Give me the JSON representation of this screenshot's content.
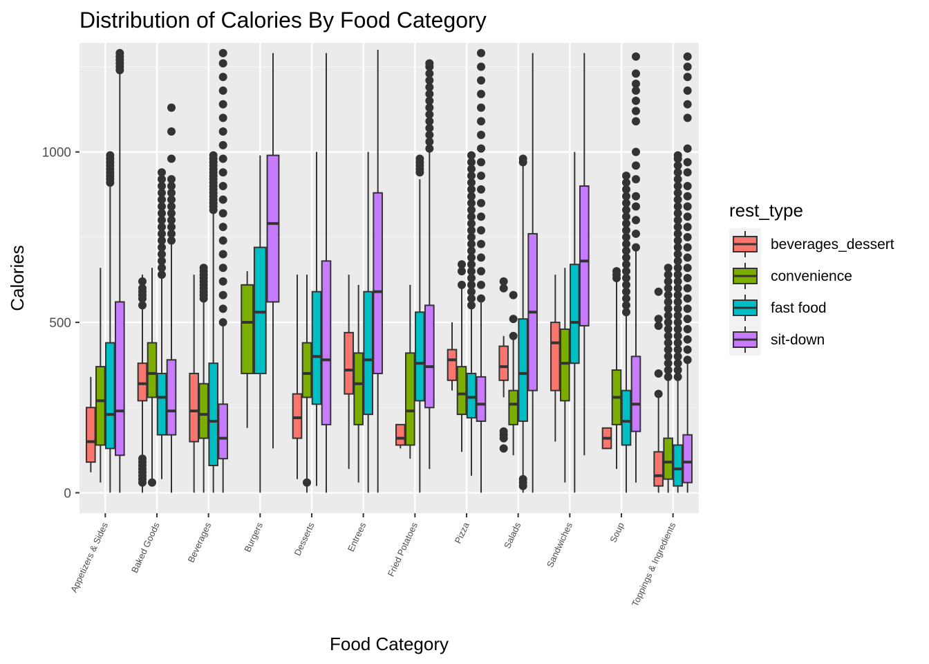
{
  "chart_data": {
    "type": "boxplot",
    "title": "Distribution of Calories By Food Category",
    "xlabel": "Food Category",
    "ylabel": "Calories",
    "ylim": [
      -60,
      1320
    ],
    "yticks": [
      0,
      500,
      1000
    ],
    "grid": true,
    "legend": {
      "title": "rest_type",
      "placement": "right"
    },
    "categories": [
      "Appetizers & Sides",
      "Baked Goods",
      "Beverages",
      "Burgers",
      "Desserts",
      "Entrees",
      "Fried Potatoes",
      "Pizza",
      "Salads",
      "Sandwiches",
      "Soup",
      "Toppings & Ingredients"
    ],
    "series": [
      {
        "name": "beverages_dessert",
        "color": "#F8766D",
        "boxes": [
          {
            "low": 60,
            "q1": 90,
            "median": 150,
            "q3": 250,
            "high": 340,
            "outliers": []
          },
          {
            "low": 0,
            "q1": 270,
            "median": 320,
            "q3": 380,
            "high": 640,
            "outliers": [
              30,
              40,
              50,
              60,
              70,
              80,
              90,
              100,
              550,
              570,
              580,
              590,
              600,
              620
            ]
          },
          {
            "low": 0,
            "q1": 150,
            "median": 240,
            "q3": 350,
            "high": 640,
            "outliers": []
          },
          null,
          {
            "low": 40,
            "q1": 160,
            "median": 220,
            "q3": 290,
            "high": 640,
            "outliers": []
          },
          {
            "low": 70,
            "q1": 290,
            "median": 360,
            "q3": 470,
            "high": 640,
            "outliers": []
          },
          {
            "low": 130,
            "q1": 140,
            "median": 160,
            "q3": 200,
            "high": 200,
            "outliers": []
          },
          {
            "low": 300,
            "q1": 330,
            "median": 390,
            "q3": 420,
            "high": 500,
            "outliers": []
          },
          {
            "low": 280,
            "q1": 330,
            "median": 370,
            "q3": 430,
            "high": 460,
            "outliers": [
              130,
              160,
              170,
              180,
              600,
              620
            ]
          },
          {
            "low": 150,
            "q1": 300,
            "median": 440,
            "q3": 500,
            "high": 640,
            "outliers": []
          },
          {
            "low": 130,
            "q1": 130,
            "median": 160,
            "q3": 190,
            "high": 190,
            "outliers": []
          },
          {
            "low": 0,
            "q1": 20,
            "median": 50,
            "q3": 120,
            "high": 280,
            "outliers": [
              290,
              350,
              490,
              510,
              590
            ]
          }
        ]
      },
      {
        "name": "convenience",
        "color": "#7CAE00",
        "boxes": [
          {
            "low": 30,
            "q1": 140,
            "median": 270,
            "q3": 370,
            "high": 660,
            "outliers": []
          },
          {
            "low": 30,
            "q1": 280,
            "median": 350,
            "q3": 440,
            "high": 660,
            "outliers": [
              30
            ]
          },
          {
            "low": 0,
            "q1": 160,
            "median": 230,
            "q3": 320,
            "high": 560,
            "outliers": [
              570,
              580,
              590,
              600,
              610,
              620,
              630,
              640,
              650,
              660
            ]
          },
          {
            "low": 190,
            "q1": 350,
            "median": 500,
            "q3": 610,
            "high": 650,
            "outliers": []
          },
          {
            "low": 0,
            "q1": 280,
            "median": 350,
            "q3": 440,
            "high": 640,
            "outliers": [
              30
            ]
          },
          {
            "low": 30,
            "q1": 200,
            "median": 320,
            "q3": 410,
            "high": 610,
            "outliers": []
          },
          {
            "low": 100,
            "q1": 140,
            "median": 240,
            "q3": 410,
            "high": 610,
            "outliers": []
          },
          {
            "low": 120,
            "q1": 230,
            "median": 290,
            "q3": 370,
            "high": 600,
            "outliers": [
              610,
              650,
              670
            ]
          },
          {
            "low": 110,
            "q1": 200,
            "median": 260,
            "q3": 300,
            "high": 450,
            "outliers": [
              460,
              510,
              580
            ]
          },
          {
            "low": 30,
            "q1": 270,
            "median": 380,
            "q3": 480,
            "high": 660,
            "outliers": []
          },
          {
            "low": 70,
            "q1": 200,
            "median": 280,
            "q3": 360,
            "high": 620,
            "outliers": [
              630,
              640,
              650
            ]
          },
          {
            "low": 0,
            "q1": 40,
            "median": 90,
            "q3": 160,
            "high": 330,
            "outliers": [
              340,
              360,
              380,
              400,
              420,
              440,
              460,
              480,
              500,
              520,
              540,
              560,
              580,
              600,
              620,
              640,
              660
            ]
          }
        ]
      },
      {
        "name": "fast food",
        "color": "#00BFC4",
        "boxes": [
          {
            "low": 0,
            "q1": 130,
            "median": 230,
            "q3": 440,
            "high": 900,
            "outliers": [
              910,
              920,
              930,
              940,
              950,
              960,
              970,
              980,
              990
            ]
          },
          {
            "low": 40,
            "q1": 170,
            "median": 280,
            "q3": 350,
            "high": 630,
            "outliers": [
              640,
              660,
              680,
              700,
              720,
              740,
              760,
              780,
              800,
              820,
              840,
              860,
              880,
              900,
              920,
              940
            ]
          },
          {
            "low": 0,
            "q1": 80,
            "median": 210,
            "q3": 380,
            "high": 820,
            "outliers": [
              830,
              840,
              850,
              860,
              870,
              880,
              890,
              900,
              910,
              920,
              930,
              940,
              950,
              960,
              970,
              980,
              990
            ]
          },
          {
            "low": 0,
            "q1": 350,
            "median": 530,
            "q3": 720,
            "high": 990,
            "outliers": []
          },
          {
            "low": 20,
            "q1": 260,
            "median": 400,
            "q3": 590,
            "high": 1000,
            "outliers": []
          },
          {
            "low": 0,
            "q1": 230,
            "median": 390,
            "q3": 590,
            "high": 1000,
            "outliers": []
          },
          {
            "low": 0,
            "q1": 270,
            "median": 380,
            "q3": 530,
            "high": 920,
            "outliers": [
              940,
              950,
              960,
              970,
              980
            ]
          },
          {
            "low": 50,
            "q1": 220,
            "median": 280,
            "q3": 350,
            "high": 540,
            "outliers": [
              550,
              570,
              590,
              610,
              630,
              650,
              670,
              690,
              710,
              730,
              750,
              770,
              790,
              810,
              830,
              850,
              870,
              890,
              910,
              930,
              950,
              970,
              990
            ]
          },
          {
            "low": 0,
            "q1": 210,
            "median": 350,
            "q3": 510,
            "high": 970,
            "outliers": [
              20,
              30,
              40,
              970,
              980
            ]
          },
          {
            "low": 0,
            "q1": 380,
            "median": 500,
            "q3": 670,
            "high": 1000,
            "outliers": []
          },
          {
            "low": 0,
            "q1": 140,
            "median": 210,
            "q3": 300,
            "high": 520,
            "outliers": [
              530,
              550,
              570,
              590,
              610,
              630,
              650,
              670,
              690,
              710,
              730,
              750,
              770,
              790,
              810,
              830,
              850,
              870,
              890,
              910,
              930
            ]
          },
          {
            "low": 0,
            "q1": 20,
            "median": 70,
            "q3": 140,
            "high": 330,
            "outliers": [
              340,
              360,
              380,
              400,
              420,
              440,
              460,
              480,
              500,
              520,
              540,
              560,
              580,
              600,
              620,
              640,
              660,
              680,
              700,
              720,
              740,
              760,
              780,
              800,
              820,
              840,
              860,
              880,
              900,
              920,
              940,
              960,
              980,
              990
            ]
          }
        ]
      },
      {
        "name": "sit-down",
        "color": "#C77CFF",
        "boxes": [
          {
            "low": 0,
            "q1": 110,
            "median": 240,
            "q3": 560,
            "high": 1230,
            "outliers": [
              1240,
              1250,
              1260,
              1270,
              1280,
              1290
            ]
          },
          {
            "low": 0,
            "q1": 170,
            "median": 240,
            "q3": 390,
            "high": 730,
            "outliers": [
              740,
              760,
              780,
              800,
              820,
              840,
              860,
              880,
              900,
              920,
              980,
              1060,
              1130
            ]
          },
          {
            "low": 0,
            "q1": 100,
            "median": 160,
            "q3": 260,
            "high": 490,
            "outliers": [
              500,
              540,
              580,
              620,
              660,
              700,
              740,
              780,
              820,
              860,
              900,
              940,
              980,
              1020,
              1060,
              1100,
              1140,
              1180,
              1220,
              1260,
              1290
            ]
          },
          {
            "low": 130,
            "q1": 560,
            "median": 790,
            "q3": 990,
            "high": 1290,
            "outliers": []
          },
          {
            "low": 0,
            "q1": 200,
            "median": 390,
            "q3": 680,
            "high": 1290,
            "outliers": []
          },
          {
            "low": 0,
            "q1": 350,
            "median": 590,
            "q3": 880,
            "high": 1300,
            "outliers": []
          },
          {
            "low": 70,
            "q1": 250,
            "median": 370,
            "q3": 550,
            "high": 1000,
            "outliers": [
              1010,
              1030,
              1050,
              1070,
              1090,
              1110,
              1130,
              1150,
              1170,
              1190,
              1210,
              1230,
              1250,
              1260
            ]
          },
          {
            "low": 0,
            "q1": 210,
            "median": 260,
            "q3": 340,
            "high": 560,
            "outliers": [
              570,
              610,
              650,
              690,
              730,
              770,
              810,
              850,
              890,
              930,
              970,
              1010,
              1050,
              1090,
              1130,
              1170,
              1210,
              1250,
              1290
            ]
          },
          {
            "low": 0,
            "q1": 300,
            "median": 530,
            "q3": 760,
            "high": 1290,
            "outliers": []
          },
          {
            "low": 110,
            "q1": 490,
            "median": 680,
            "q3": 900,
            "high": 1290,
            "outliers": []
          },
          {
            "low": 30,
            "q1": 180,
            "median": 260,
            "q3": 400,
            "high": 710,
            "outliers": [
              720,
              760,
              800,
              840,
              870,
              920,
              960,
              1000,
              1090,
              1120,
              1150,
              1180,
              1200,
              1230,
              1280
            ]
          },
          {
            "low": 0,
            "q1": 30,
            "median": 90,
            "q3": 170,
            "high": 380,
            "outliers": [
              390,
              420,
              450,
              480,
              510,
              540,
              570,
              600,
              630,
              660,
              690,
              720,
              750,
              780,
              810,
              840,
              870,
              900,
              940,
              970,
              1010,
              1100,
              1140,
              1180,
              1220,
              1250,
              1280
            ]
          }
        ]
      }
    ]
  }
}
